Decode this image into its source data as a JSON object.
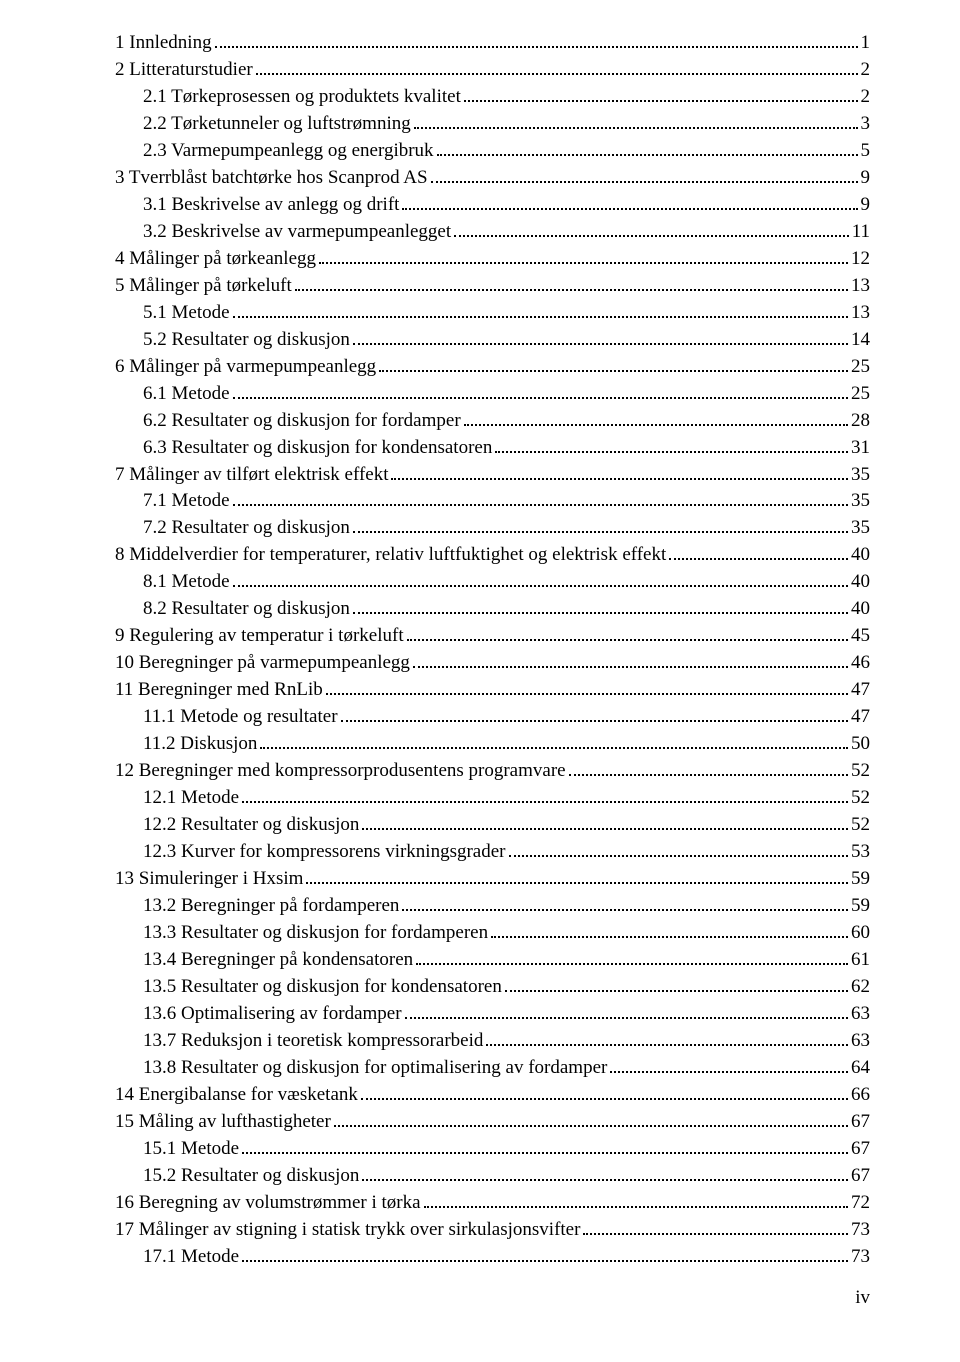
{
  "pageNumber": "iv",
  "entries": [
    {
      "indent": 0,
      "label": "1 Innledning",
      "page": "1"
    },
    {
      "indent": 0,
      "label": "2 Litteraturstudier",
      "page": "2"
    },
    {
      "indent": 1,
      "label": "2.1 Tørkeprosessen og produktets kvalitet",
      "page": "2"
    },
    {
      "indent": 1,
      "label": "2.2 Tørketunneler og luftstrømning",
      "page": "3"
    },
    {
      "indent": 1,
      "label": "2.3 Varmepumpeanlegg og energibruk",
      "page": "5"
    },
    {
      "indent": 0,
      "label": "3 Tverrblåst batchtørke hos Scanprod AS",
      "page": "9"
    },
    {
      "indent": 1,
      "label": "3.1 Beskrivelse av anlegg og drift",
      "page": "9"
    },
    {
      "indent": 1,
      "label": "3.2 Beskrivelse av varmepumpeanlegget",
      "page": "11"
    },
    {
      "indent": 0,
      "label": "4 Målinger på tørkeanlegg",
      "page": "12"
    },
    {
      "indent": 0,
      "label": "5 Målinger på tørkeluft",
      "page": "13"
    },
    {
      "indent": 1,
      "label": "5.1 Metode",
      "page": "13"
    },
    {
      "indent": 1,
      "label": "5.2 Resultater og diskusjon",
      "page": "14"
    },
    {
      "indent": 0,
      "label": "6 Målinger på varmepumpeanlegg",
      "page": "25"
    },
    {
      "indent": 1,
      "label": "6.1 Metode",
      "page": "25"
    },
    {
      "indent": 1,
      "label": "6.2 Resultater og diskusjon for fordamper",
      "page": "28"
    },
    {
      "indent": 1,
      "label": "6.3 Resultater og diskusjon for kondensatoren",
      "page": "31"
    },
    {
      "indent": 0,
      "label": "7 Målinger av tilført elektrisk effekt",
      "page": "35"
    },
    {
      "indent": 1,
      "label": "7.1 Metode",
      "page": "35"
    },
    {
      "indent": 1,
      "label": "7.2 Resultater og diskusjon",
      "page": "35"
    },
    {
      "indent": 0,
      "label": "8 Middelverdier for temperaturer, relativ luftfuktighet og elektrisk effekt",
      "page": "40"
    },
    {
      "indent": 1,
      "label": "8.1 Metode",
      "page": "40"
    },
    {
      "indent": 1,
      "label": "8.2 Resultater og diskusjon",
      "page": "40"
    },
    {
      "indent": 0,
      "label": "9 Regulering av temperatur i tørkeluft",
      "page": "45"
    },
    {
      "indent": 0,
      "label": "10 Beregninger på varmepumpeanlegg",
      "page": "46"
    },
    {
      "indent": 0,
      "label": "11 Beregninger med RnLib",
      "page": "47"
    },
    {
      "indent": 1,
      "label": "11.1 Metode og resultater",
      "page": "47"
    },
    {
      "indent": 1,
      "label": "11.2 Diskusjon",
      "page": "50"
    },
    {
      "indent": 0,
      "label": "12 Beregninger med kompressorprodusentens programvare",
      "page": "52"
    },
    {
      "indent": 1,
      "label": "12.1 Metode",
      "page": "52"
    },
    {
      "indent": 1,
      "label": "12.2 Resultater og diskusjon",
      "page": "52"
    },
    {
      "indent": 1,
      "label": "12.3 Kurver for kompressorens virkningsgrader",
      "page": "53"
    },
    {
      "indent": 0,
      "label": "13 Simuleringer i Hxsim",
      "page": "59"
    },
    {
      "indent": 1,
      "label": "13.2 Beregninger på fordamperen",
      "page": "59"
    },
    {
      "indent": 1,
      "label": "13.3 Resultater og diskusjon for fordamperen",
      "page": "60"
    },
    {
      "indent": 1,
      "label": "13.4 Beregninger på kondensatoren",
      "page": "61"
    },
    {
      "indent": 1,
      "label": "13.5 Resultater og diskusjon for kondensatoren",
      "page": "62"
    },
    {
      "indent": 1,
      "label": "13.6 Optimalisering av fordamper",
      "page": "63"
    },
    {
      "indent": 1,
      "label": "13.7 Reduksjon i teoretisk kompressorarbeid",
      "page": "63"
    },
    {
      "indent": 1,
      "label": "13.8 Resultater og diskusjon for optimalisering av fordamper",
      "page": "64"
    },
    {
      "indent": 0,
      "label": "14 Energibalanse for væsketank",
      "page": "66"
    },
    {
      "indent": 0,
      "label": "15 Måling av lufthastigheter",
      "page": "67"
    },
    {
      "indent": 1,
      "label": "15.1 Metode",
      "page": "67"
    },
    {
      "indent": 1,
      "label": "15.2 Resultater og diskusjon",
      "page": "67"
    },
    {
      "indent": 0,
      "label": "16 Beregning av volumstrømmer i tørka",
      "page": "72"
    },
    {
      "indent": 0,
      "label": "17 Målinger av stigning i statisk trykk over sirkulasjonsvifter",
      "page": "73"
    },
    {
      "indent": 1,
      "label": "17.1 Metode",
      "page": "73"
    }
  ]
}
